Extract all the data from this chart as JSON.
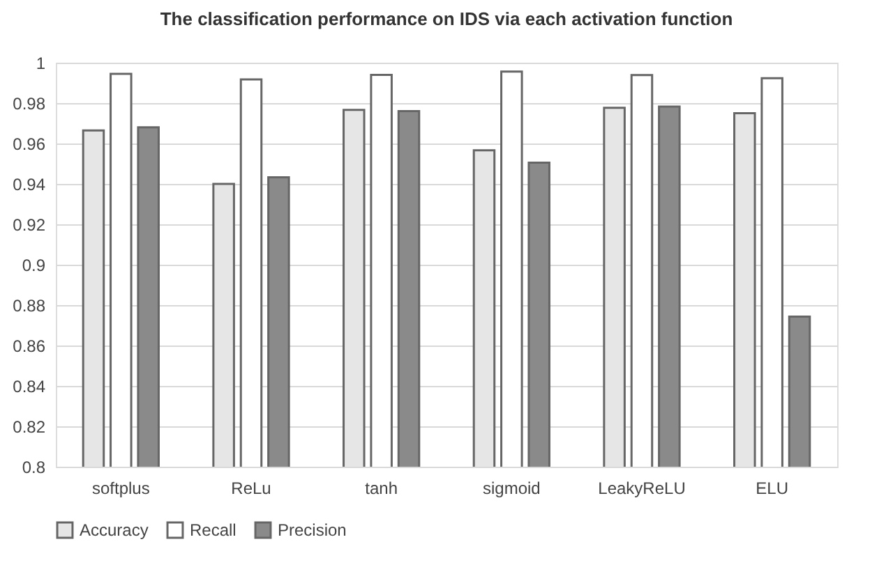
{
  "chart_data": {
    "type": "bar",
    "title": "The classification performance on IDS via each activation function",
    "categories": [
      "softplus",
      "ReLu",
      "tanh",
      "sigmoid",
      "LeakyReLU",
      "ELU"
    ],
    "series": [
      {
        "name": "Accuracy",
        "color": "#e6e6e6",
        "values": [
          0.9665,
          0.94,
          0.9766,
          0.9566,
          0.9777,
          0.975
        ]
      },
      {
        "name": "Recall",
        "color": "#ffffff",
        "values": [
          0.9945,
          0.9917,
          0.994,
          0.9956,
          0.9939,
          0.9923
        ]
      },
      {
        "name": "Precision",
        "color": "#8a8a8a",
        "values": [
          0.968,
          0.9433,
          0.976,
          0.9505,
          0.9783,
          0.8743
        ]
      }
    ],
    "ylim": [
      0.8,
      1
    ],
    "yticks": [
      0.8,
      0.82,
      0.84,
      0.86,
      0.88,
      0.9,
      0.92,
      0.94,
      0.96,
      0.98,
      1
    ],
    "grid": "y",
    "legend": "bottom"
  }
}
